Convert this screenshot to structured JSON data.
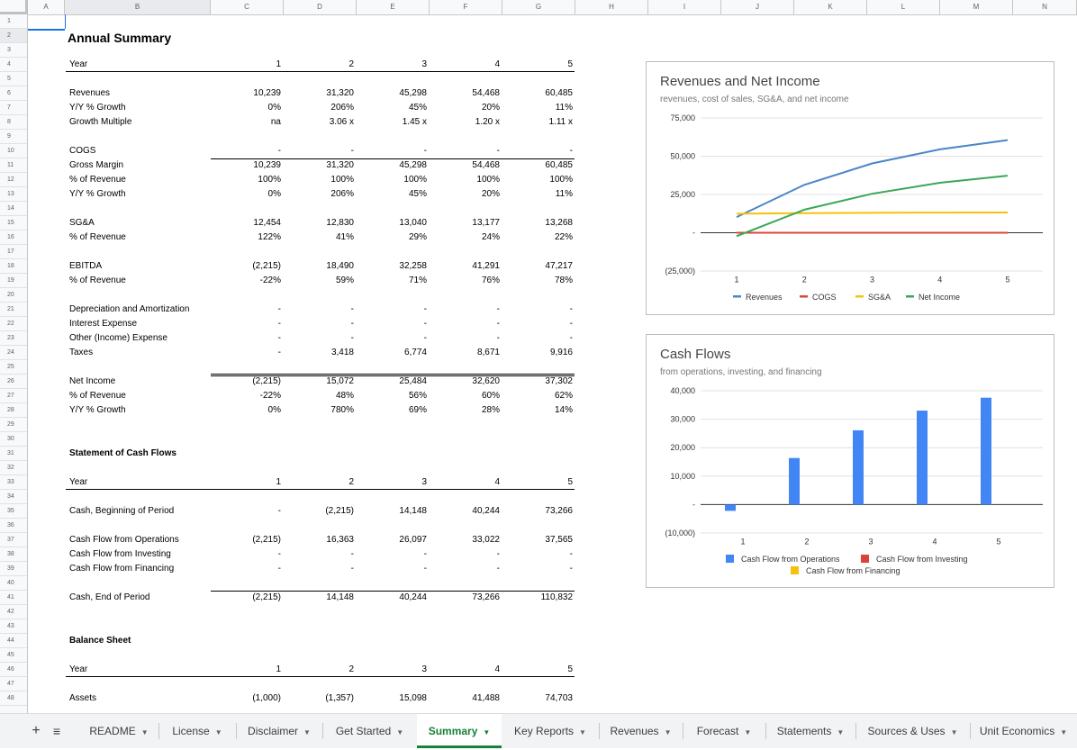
{
  "columns": [
    "A",
    "B",
    "C",
    "D",
    "E",
    "F",
    "G",
    "H",
    "I",
    "J",
    "K",
    "L",
    "M",
    "N"
  ],
  "rows": [
    "1",
    "2",
    "3",
    "4",
    "5",
    "6",
    "7",
    "8",
    "9",
    "10",
    "11",
    "12",
    "13",
    "14",
    "15",
    "16",
    "17",
    "18",
    "19",
    "20",
    "21",
    "22",
    "23",
    "24",
    "25",
    "26",
    "27",
    "28",
    "29",
    "30",
    "31",
    "32",
    "33",
    "34",
    "35",
    "36",
    "37",
    "38",
    "39",
    "40",
    "41",
    "42",
    "43",
    "44",
    "45",
    "46",
    "47",
    "48"
  ],
  "sheet": {
    "title": "Annual Summary",
    "year_label": "Year",
    "years": [
      "1",
      "2",
      "3",
      "4",
      "5"
    ],
    "income": [
      {
        "label": "Revenues",
        "values": [
          "10,239",
          "31,320",
          "45,298",
          "54,468",
          "60,485"
        ]
      },
      {
        "label": "Y/Y % Growth",
        "values": [
          "0%",
          "206%",
          "45%",
          "20%",
          "11%"
        ]
      },
      {
        "label": "Growth Multiple",
        "values": [
          "na",
          "3.06 x",
          "1.45 x",
          "1.20 x",
          "1.11 x"
        ]
      },
      {
        "label": "COGS",
        "values": [
          "-",
          "-",
          "-",
          "-",
          "-"
        ]
      },
      {
        "label": "Gross Margin",
        "values": [
          "10,239",
          "31,320",
          "45,298",
          "54,468",
          "60,485"
        ]
      },
      {
        "label": "% of Revenue",
        "values": [
          "100%",
          "100%",
          "100%",
          "100%",
          "100%"
        ]
      },
      {
        "label": "Y/Y % Growth",
        "values": [
          "0%",
          "206%",
          "45%",
          "20%",
          "11%"
        ]
      },
      {
        "label": "SG&A",
        "values": [
          "12,454",
          "12,830",
          "13,040",
          "13,177",
          "13,268"
        ]
      },
      {
        "label": "% of Revenue",
        "values": [
          "122%",
          "41%",
          "29%",
          "24%",
          "22%"
        ]
      },
      {
        "label": "EBITDA",
        "values": [
          "(2,215)",
          "18,490",
          "32,258",
          "41,291",
          "47,217"
        ]
      },
      {
        "label": "% of Revenue",
        "values": [
          "-22%",
          "59%",
          "71%",
          "76%",
          "78%"
        ]
      },
      {
        "label": "Depreciation and Amortization",
        "values": [
          "-",
          "-",
          "-",
          "-",
          "-"
        ]
      },
      {
        "label": "Interest Expense",
        "values": [
          "-",
          "-",
          "-",
          "-",
          "-"
        ]
      },
      {
        "label": "Other (Income) Expense",
        "values": [
          "-",
          "-",
          "-",
          "-",
          "-"
        ]
      },
      {
        "label": "Taxes",
        "values": [
          "-",
          "3,418",
          "6,774",
          "8,671",
          "9,916"
        ]
      },
      {
        "label": "Net Income",
        "values": [
          "(2,215)",
          "15,072",
          "25,484",
          "32,620",
          "37,302"
        ]
      },
      {
        "label": "% of Revenue",
        "values": [
          "-22%",
          "48%",
          "56%",
          "60%",
          "62%"
        ]
      },
      {
        "label": "Y/Y % Growth",
        "values": [
          "0%",
          "780%",
          "69%",
          "28%",
          "14%"
        ]
      }
    ],
    "cashflow_title": "Statement of Cash Flows",
    "cashflow": [
      {
        "label": "Cash, Beginning of Period",
        "values": [
          "-",
          "(2,215)",
          "14,148",
          "40,244",
          "73,266"
        ]
      },
      {
        "label": "Cash Flow from Operations",
        "values": [
          "(2,215)",
          "16,363",
          "26,097",
          "33,022",
          "37,565"
        ]
      },
      {
        "label": "Cash Flow from Investing",
        "values": [
          "-",
          "-",
          "-",
          "-",
          "-"
        ]
      },
      {
        "label": "Cash Flow from Financing",
        "values": [
          "-",
          "-",
          "-",
          "-",
          "-"
        ]
      },
      {
        "label": "Cash, End of Period",
        "values": [
          "(2,215)",
          "14,148",
          "40,244",
          "73,266",
          "110,832"
        ]
      }
    ],
    "balance_title": "Balance Sheet",
    "balance": [
      {
        "label": "Assets",
        "values": [
          "(1,000)",
          "(1,357)",
          "15,098",
          "41,488",
          "74,703"
        ]
      }
    ]
  },
  "chart_data": [
    {
      "type": "line",
      "title": "Revenues and Net Income",
      "subtitle": "revenues, cost of sales, SG&A, and net income",
      "categories": [
        "1",
        "2",
        "3",
        "4",
        "5"
      ],
      "y_ticks": [
        "75,000",
        "50,000",
        "25,000",
        "-",
        "(25,000)"
      ],
      "y_tick_values": [
        75000,
        50000,
        25000,
        0,
        -25000
      ],
      "ylim": [
        -25000,
        75000
      ],
      "series": [
        {
          "name": "Revenues",
          "color": "#4a86c8",
          "values": [
            10239,
            31320,
            45298,
            54468,
            60485
          ]
        },
        {
          "name": "COGS",
          "color": "#db4437",
          "values": [
            0,
            0,
            0,
            0,
            0
          ]
        },
        {
          "name": "SG&A",
          "color": "#f4c20d",
          "values": [
            12454,
            12830,
            13040,
            13177,
            13268
          ]
        },
        {
          "name": "Net Income",
          "color": "#3aa757",
          "values": [
            -2215,
            15072,
            25484,
            32620,
            37302
          ]
        }
      ],
      "legend": "bottom"
    },
    {
      "type": "bar",
      "title": "Cash Flows",
      "subtitle": "from operations, investing, and financing",
      "categories": [
        "1",
        "2",
        "3",
        "4",
        "5"
      ],
      "y_ticks": [
        "40,000",
        "30,000",
        "20,000",
        "10,000",
        "-",
        "(10,000)"
      ],
      "y_tick_values": [
        40000,
        30000,
        20000,
        10000,
        0,
        -10000
      ],
      "ylim": [
        -10000,
        40000
      ],
      "series": [
        {
          "name": "Cash Flow from Operations",
          "color": "#4285f4",
          "values": [
            -2215,
            16363,
            26097,
            33022,
            37565
          ]
        },
        {
          "name": "Cash Flow from Investing",
          "color": "#db4437",
          "values": [
            0,
            0,
            0,
            0,
            0
          ]
        },
        {
          "name": "Cash Flow from Financing",
          "color": "#f4c20d",
          "values": [
            0,
            0,
            0,
            0,
            0
          ]
        }
      ],
      "legend": "bottom"
    }
  ],
  "tabs": {
    "add_label": "+",
    "menu_label": "≡",
    "items": [
      {
        "label": "README",
        "active": false
      },
      {
        "label": "License",
        "active": false
      },
      {
        "label": "Disclaimer",
        "active": false
      },
      {
        "label": "Get Started",
        "active": false
      },
      {
        "label": "Summary",
        "active": true
      },
      {
        "label": "Key Reports",
        "active": false
      },
      {
        "label": "Revenues",
        "active": false
      },
      {
        "label": "Forecast",
        "active": false
      },
      {
        "label": "Statements",
        "active": false
      },
      {
        "label": "Sources & Uses",
        "active": false
      },
      {
        "label": "Unit Economics",
        "active": false
      }
    ]
  }
}
